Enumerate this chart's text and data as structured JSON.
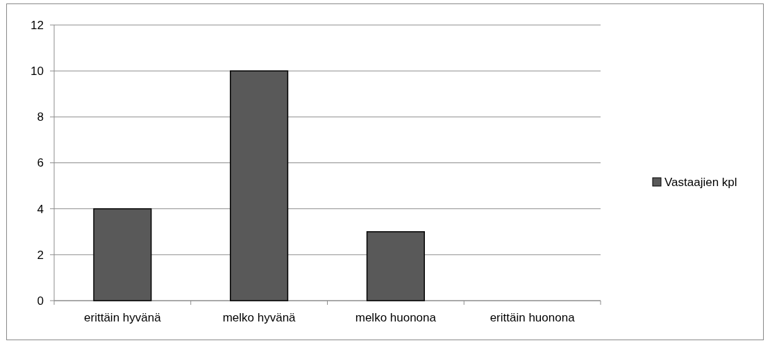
{
  "chart_data": {
    "type": "bar",
    "categories": [
      "erittäin hyvänä",
      "melko hyvänä",
      "melko huonona",
      "erittäin huonona"
    ],
    "series": [
      {
        "name": "Vastaajien kpl",
        "color": "#595959",
        "values": [
          4,
          10,
          3,
          0
        ]
      }
    ],
    "ylim": [
      0,
      12
    ],
    "yticks": [
      0,
      2,
      4,
      6,
      8,
      10,
      12
    ],
    "grid": "y",
    "legend": "right"
  }
}
